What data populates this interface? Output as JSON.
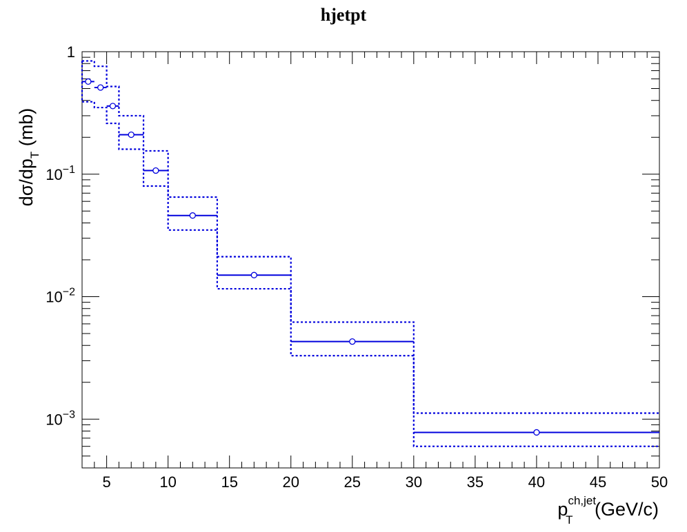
{
  "chart_data": {
    "type": "line",
    "title": "hjetpt",
    "xlabel": {
      "main": "p",
      "sup": "ch,jet",
      "sub": "T",
      "unit": "(GeV/c)"
    },
    "ylabel": {
      "main": "dσ/dp",
      "sub": "T",
      "unit": "(mb)"
    },
    "xlim": [
      3,
      50
    ],
    "ylim": [
      0.0004,
      1.0
    ],
    "yscale": "log",
    "x_ticks": [
      5,
      10,
      15,
      20,
      25,
      30,
      35,
      40,
      45,
      50
    ],
    "y_ticks": [
      {
        "value": 1.0,
        "label": "1"
      },
      {
        "value": 0.1,
        "label": "10",
        "exp": "−1"
      },
      {
        "value": 0.01,
        "label": "10",
        "exp": "−2"
      },
      {
        "value": 0.001,
        "label": "10",
        "exp": "−3"
      }
    ],
    "grid": false,
    "legend": "none",
    "series": [
      {
        "color": "#0000dd",
        "marker": "open-circle",
        "bins": [
          {
            "xlow": 3,
            "xhigh": 4,
            "x": 3.5,
            "y": 0.57,
            "upper": 0.84,
            "lower": 0.39
          },
          {
            "xlow": 4,
            "xhigh": 5,
            "x": 4.5,
            "y": 0.51,
            "upper": 0.76,
            "lower": 0.35
          },
          {
            "xlow": 5,
            "xhigh": 6,
            "x": 5.5,
            "y": 0.36,
            "upper": 0.52,
            "lower": 0.26
          },
          {
            "xlow": 6,
            "xhigh": 8,
            "x": 7,
            "y": 0.21,
            "upper": 0.3,
            "lower": 0.16
          },
          {
            "xlow": 8,
            "xhigh": 10,
            "x": 9,
            "y": 0.107,
            "upper": 0.155,
            "lower": 0.08
          },
          {
            "xlow": 10,
            "xhigh": 14,
            "x": 12,
            "y": 0.046,
            "upper": 0.065,
            "lower": 0.035
          },
          {
            "xlow": 14,
            "xhigh": 20,
            "x": 17,
            "y": 0.015,
            "upper": 0.0212,
            "lower": 0.0116
          },
          {
            "xlow": 20,
            "xhigh": 30,
            "x": 25,
            "y": 0.0043,
            "upper": 0.0062,
            "lower": 0.0033
          },
          {
            "xlow": 30,
            "xhigh": 50,
            "x": 40,
            "y": 0.00078,
            "upper": 0.00112,
            "lower": 0.0006
          }
        ]
      }
    ]
  }
}
